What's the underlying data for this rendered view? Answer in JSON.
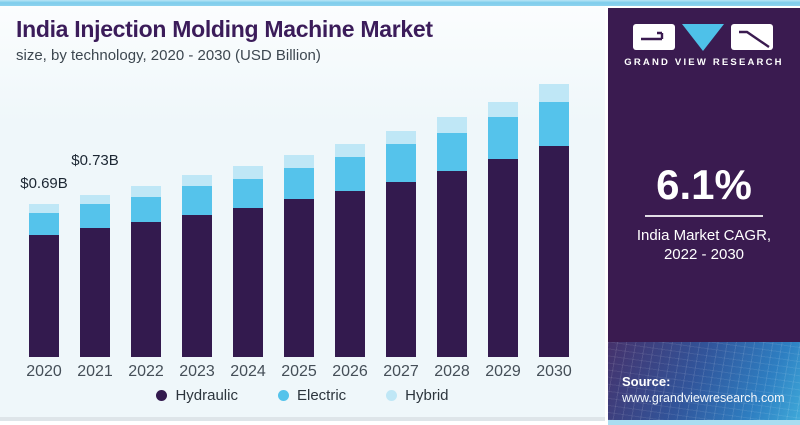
{
  "chart_data": {
    "type": "bar",
    "stacked": true,
    "title": "India Injection Molding Machine Market",
    "subtitle": "size, by technology, 2020 - 2030 (USD Billion)",
    "unit": "USD Billion",
    "categories": [
      "2020",
      "2021",
      "2022",
      "2023",
      "2024",
      "2025",
      "2026",
      "2027",
      "2028",
      "2029",
      "2030"
    ],
    "series": [
      {
        "name": "Hydraulic",
        "color": "#331a4e",
        "values": [
          0.55,
          0.58,
          0.61,
          0.64,
          0.67,
          0.71,
          0.75,
          0.79,
          0.84,
          0.89,
          0.95
        ]
      },
      {
        "name": "Electric",
        "color": "#55c3eb",
        "values": [
          0.1,
          0.11,
          0.11,
          0.13,
          0.13,
          0.14,
          0.15,
          0.17,
          0.17,
          0.19,
          0.2
        ]
      },
      {
        "name": "Hybrid",
        "color": "#bfe7f6",
        "values": [
          0.04,
          0.04,
          0.05,
          0.05,
          0.06,
          0.06,
          0.06,
          0.06,
          0.07,
          0.07,
          0.08
        ]
      }
    ],
    "totals": [
      0.69,
      0.73,
      0.77,
      0.82,
      0.86,
      0.91,
      0.96,
      1.02,
      1.08,
      1.15,
      1.23
    ],
    "annotations": [
      {
        "index": 0,
        "text": "$0.69B"
      },
      {
        "index": 1,
        "text": "$0.73B"
      }
    ],
    "legend_position": "bottom",
    "grid": false,
    "ylim": [
      0,
      1.3
    ]
  },
  "sidebar": {
    "brand_name": "GRAND VIEW RESEARCH",
    "cagr_value": "6.1%",
    "cagr_caption_line1": "India Market CAGR,",
    "cagr_caption_line2": "2022 - 2030",
    "source_label": "Source:",
    "source_url": "www.grandviewresearch.com"
  },
  "colors": {
    "sidebar_purple": "#3a1b50",
    "accent_strip_blue": "#7ecdec",
    "hydraulic": "#331a4e",
    "electric": "#55c3eb",
    "hybrid": "#bfe7f6",
    "title_purple": "#3b1c5a"
  }
}
